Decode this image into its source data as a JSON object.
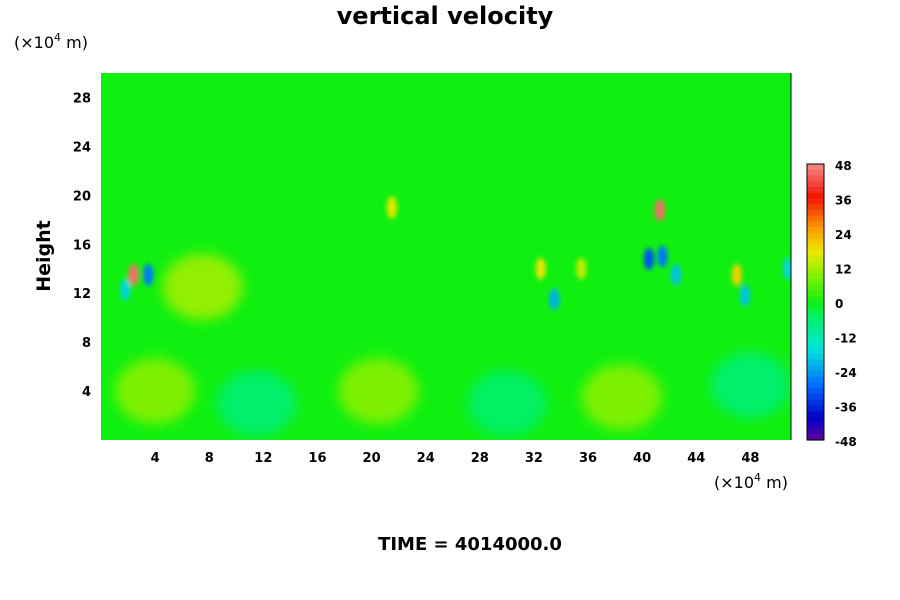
{
  "chart_data": {
    "type": "heatmap",
    "title": "vertical velocity",
    "ylabel": "Height",
    "xlabel": "",
    "x_units": {
      "prefix": "(×10",
      "exponent": "4",
      "suffix": " m)"
    },
    "y_units": {
      "prefix": "(×10",
      "exponent": "4",
      "suffix": " m)"
    },
    "x_ticks": [
      "4",
      "8",
      "12",
      "16",
      "20",
      "24",
      "28",
      "32",
      "36",
      "40",
      "44",
      "48"
    ],
    "x_tick_values": [
      4,
      8,
      12,
      16,
      20,
      24,
      28,
      32,
      36,
      40,
      44,
      48
    ],
    "y_ticks": [
      "4",
      "8",
      "12",
      "16",
      "20",
      "24",
      "28"
    ],
    "y_tick_values": [
      4,
      8,
      12,
      16,
      20,
      24,
      28
    ],
    "xlim": [
      0,
      51
    ],
    "ylim": [
      0,
      30
    ],
    "colorbar": {
      "labels": [
        "48",
        "36",
        "24",
        "12",
        "0",
        "-12",
        "-24",
        "-36",
        "-48"
      ],
      "range": [
        -48,
        48
      ],
      "levels": 48
    },
    "features": [
      {
        "x": 4,
        "y": 4,
        "value": 10
      },
      {
        "x": 20.5,
        "y": 4,
        "value": 10
      },
      {
        "x": 38.5,
        "y": 3.5,
        "value": 10
      },
      {
        "x": 11.5,
        "y": 3,
        "value": -7
      },
      {
        "x": 30,
        "y": 3,
        "value": -6
      },
      {
        "x": 48,
        "y": 4.5,
        "value": -7
      },
      {
        "x": 2.4,
        "y": 13.5,
        "value": 45
      },
      {
        "x": 3.5,
        "y": 13.5,
        "value": -28
      },
      {
        "x": 1.8,
        "y": 12.3,
        "value": -18
      },
      {
        "x": 21.5,
        "y": 19,
        "value": 18
      },
      {
        "x": 33.5,
        "y": 11.5,
        "value": -22
      },
      {
        "x": 41.3,
        "y": 18.8,
        "value": 45
      },
      {
        "x": 40.5,
        "y": 14.8,
        "value": -32
      },
      {
        "x": 41.5,
        "y": 15,
        "value": -28
      },
      {
        "x": 42.5,
        "y": 13.5,
        "value": -20
      },
      {
        "x": 47,
        "y": 13.5,
        "value": 20
      },
      {
        "x": 47.6,
        "y": 11.8,
        "value": -20
      },
      {
        "x": 50.8,
        "y": 14,
        "value": -18
      },
      {
        "x": 32.5,
        "y": 14,
        "value": 18
      },
      {
        "x": 35.5,
        "y": 14,
        "value": 14
      },
      {
        "x": 7.5,
        "y": 12.5,
        "value": 12
      }
    ]
  },
  "footer": {
    "time_label": "TIME = 4014000.0"
  }
}
